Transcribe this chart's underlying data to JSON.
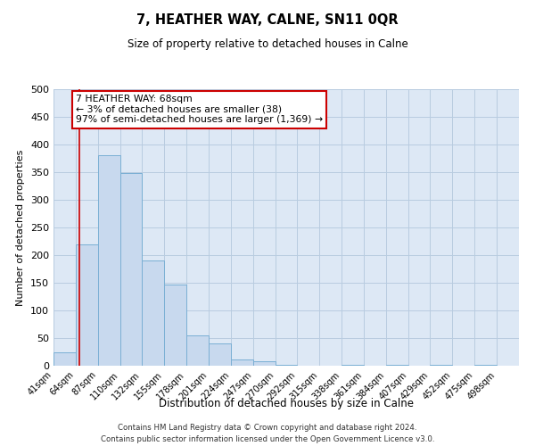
{
  "title": "7, HEATHER WAY, CALNE, SN11 0QR",
  "subtitle": "Size of property relative to detached houses in Calne",
  "xlabel": "Distribution of detached houses by size in Calne",
  "ylabel": "Number of detached properties",
  "bar_color": "#c8d9ee",
  "bar_edge_color": "#7aafd4",
  "grid_color": "#b8cce0",
  "bg_color": "#dde8f5",
  "annotation_line1": "7 HEATHER WAY: 68sqm",
  "annotation_line2": "← 3% of detached houses are smaller (38)",
  "annotation_line3": "97% of semi-detached houses are larger (1,369) →",
  "marker_x": 68,
  "marker_color": "#cc0000",
  "ylim": [
    0,
    500
  ],
  "xlim": [
    41,
    521
  ],
  "bin_edges": [
    41,
    64,
    87,
    110,
    132,
    155,
    178,
    201,
    224,
    247,
    270,
    292,
    315,
    338,
    361,
    384,
    407,
    429,
    452,
    475,
    498,
    521
  ],
  "bar_heights": [
    25,
    220,
    380,
    348,
    190,
    147,
    55,
    40,
    11,
    8,
    2,
    0,
    0,
    2,
    0,
    2,
    0,
    2,
    0,
    2,
    0
  ],
  "footnote1": "Contains HM Land Registry data © Crown copyright and database right 2024.",
  "footnote2": "Contains public sector information licensed under the Open Government Licence v3.0."
}
